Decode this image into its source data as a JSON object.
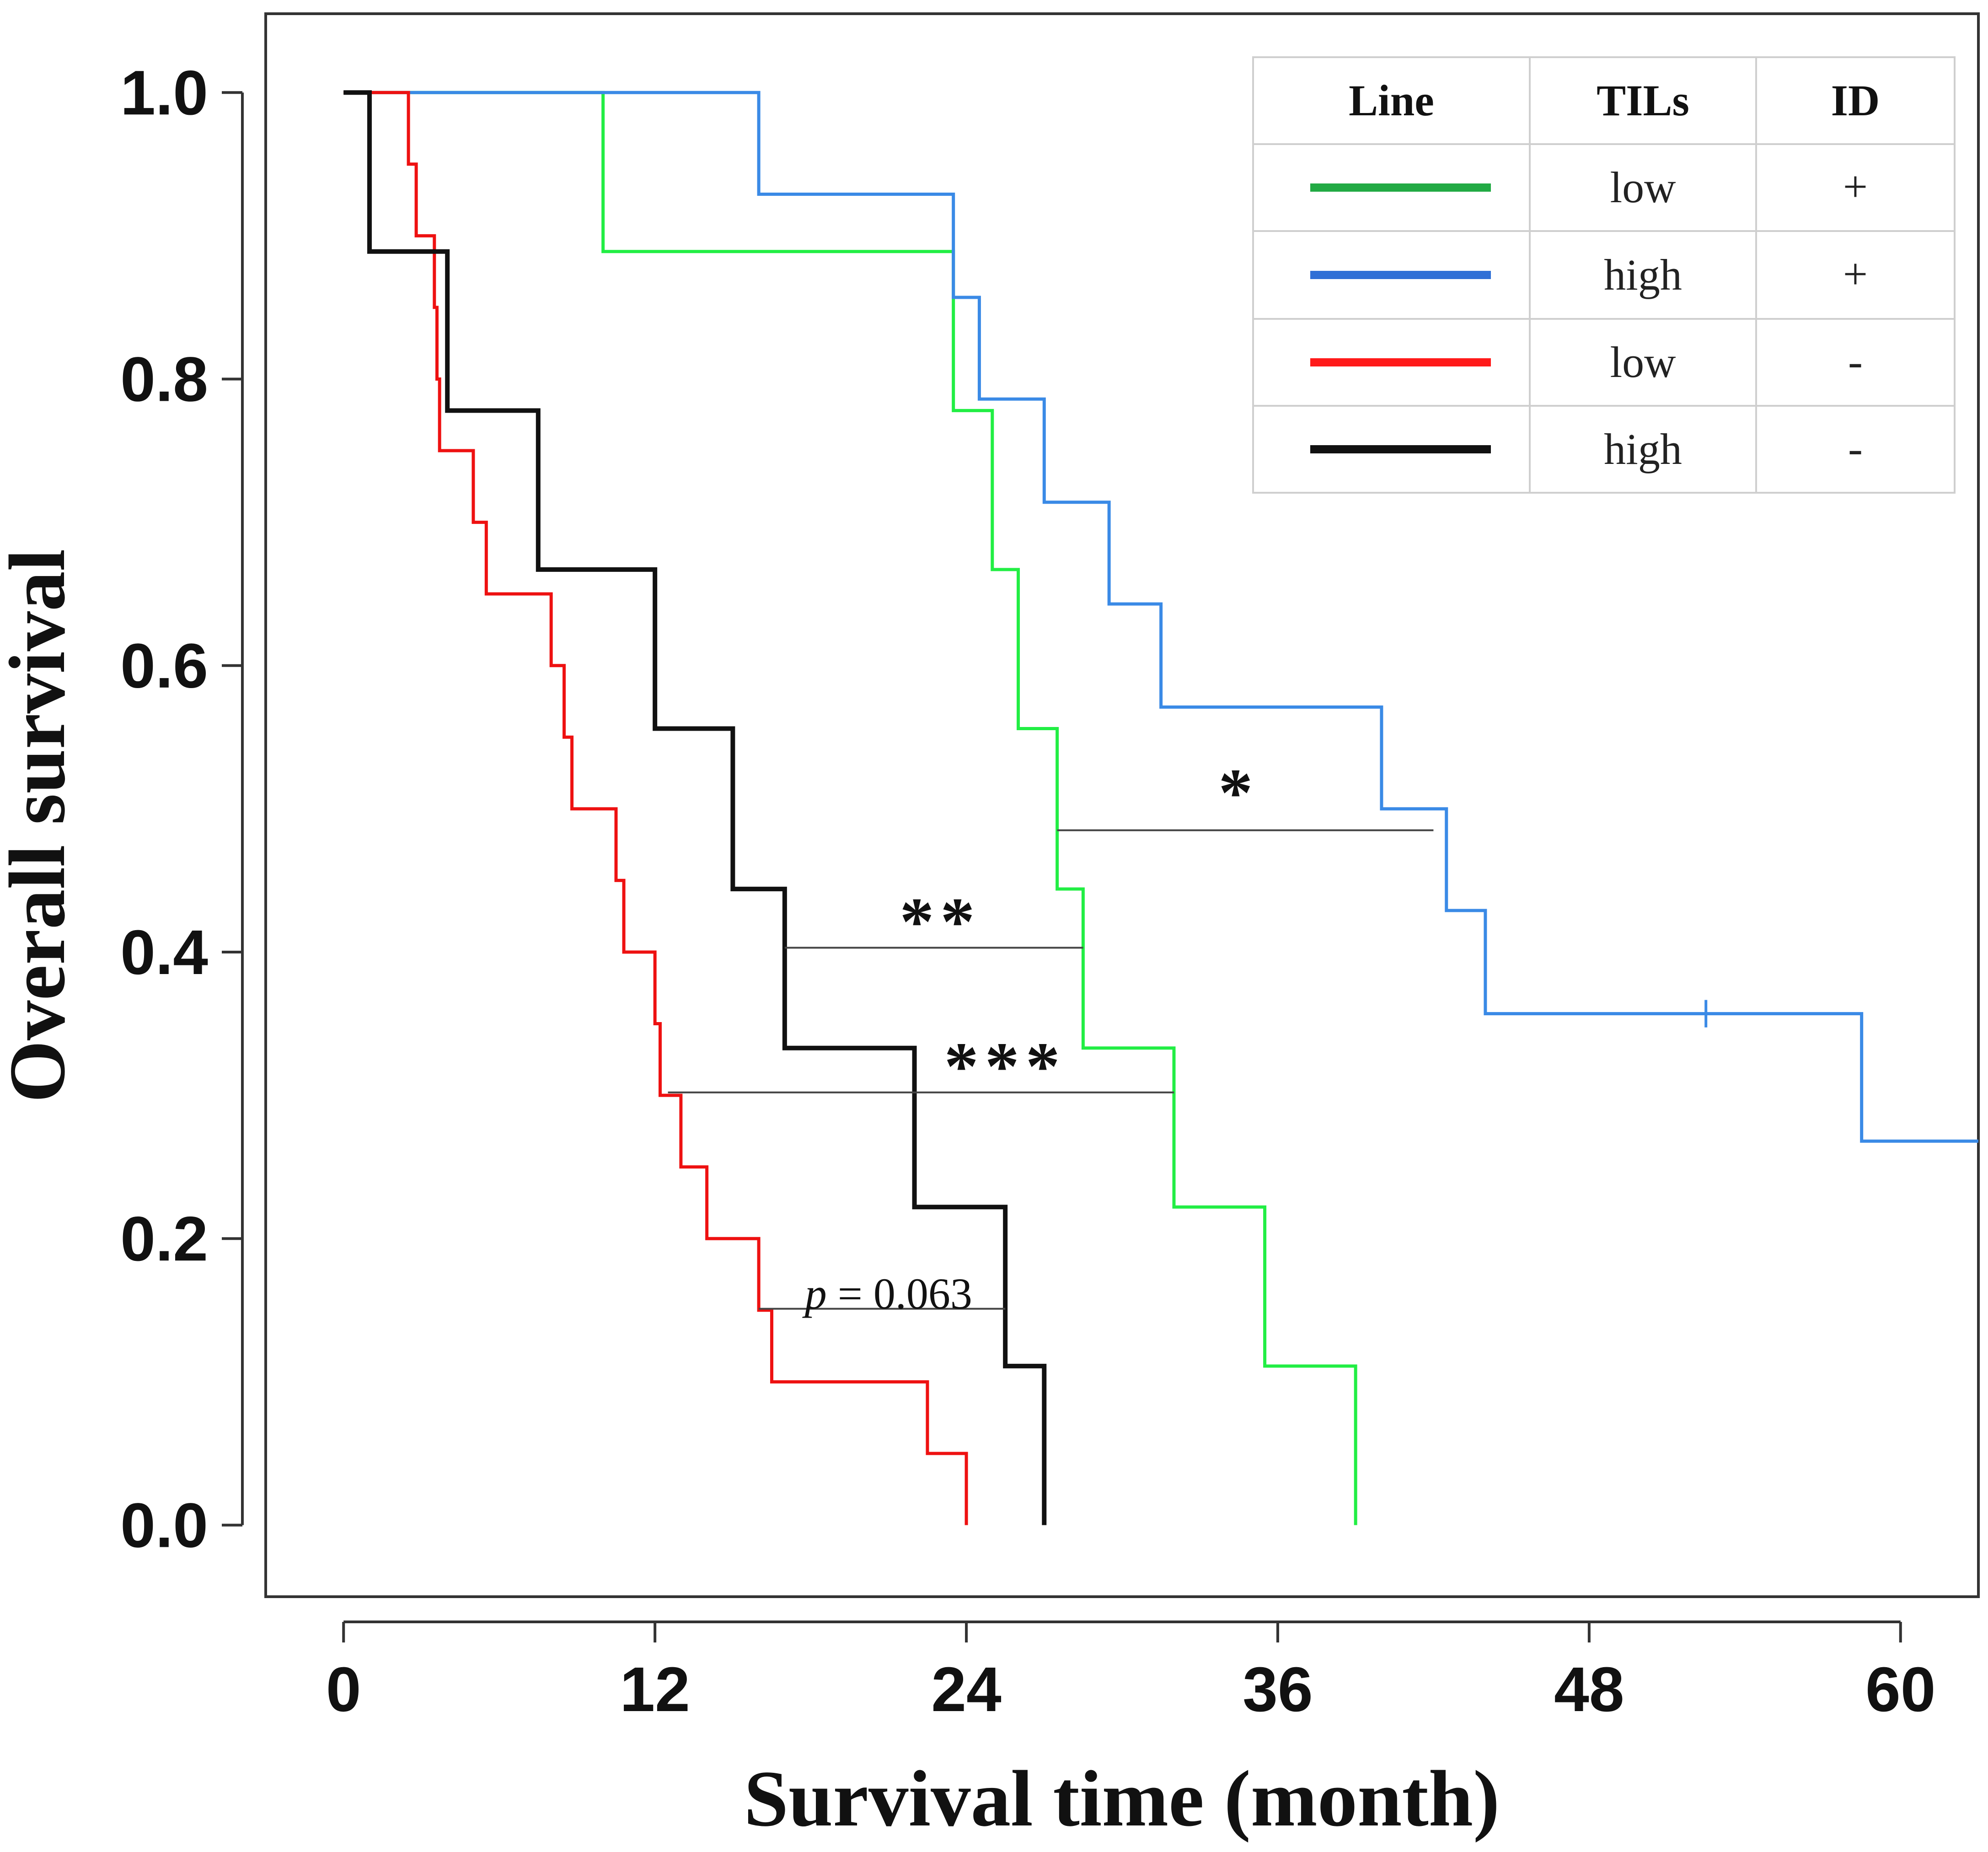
{
  "chart_data": {
    "type": "line",
    "subtype": "kaplan-meier-step",
    "title": "",
    "xlabel": "Survival time (month)",
    "ylabel": "Overall survival",
    "xlim": [
      -3,
      63
    ],
    "ylim": [
      -0.05,
      1.055
    ],
    "x_ticks": [
      0,
      12,
      24,
      36,
      48,
      60
    ],
    "x_tick_labels": [
      "0",
      "12",
      "24",
      "36",
      "48",
      "60"
    ],
    "y_ticks": [
      0.0,
      0.2,
      0.4,
      0.6,
      0.8,
      1.0
    ],
    "y_tick_labels": [
      "0.0",
      "0.2",
      "0.4",
      "0.6",
      "0.8",
      "1.0"
    ],
    "grid": false,
    "legend_position": "top-right",
    "series": [
      {
        "name": "TILs low, ID +",
        "line_label": "green",
        "color": "#22ee44",
        "steps": [
          [
            0,
            1.0
          ],
          [
            10,
            0.889
          ],
          [
            23.5,
            0.778
          ],
          [
            25,
            0.667
          ],
          [
            26,
            0.556
          ],
          [
            27.5,
            0.444
          ],
          [
            28.5,
            0.333
          ],
          [
            32,
            0.222
          ],
          [
            35.5,
            0.111
          ],
          [
            39,
            0.0
          ]
        ],
        "end_x": 39
      },
      {
        "name": "TILs high, ID +",
        "line_label": "blue",
        "color": "#3a8ae6",
        "steps": [
          [
            0,
            1.0
          ],
          [
            16,
            0.929
          ],
          [
            23.5,
            0.857
          ],
          [
            24.5,
            0.786
          ],
          [
            27,
            0.714
          ],
          [
            29.5,
            0.643
          ],
          [
            31.5,
            0.571
          ],
          [
            40,
            0.5
          ],
          [
            42.5,
            0.429
          ],
          [
            44,
            0.357
          ],
          [
            58.5,
            0.268
          ]
        ],
        "end_x": 63,
        "censored": [
          [
            52.5,
            0.357
          ]
        ]
      },
      {
        "name": "TILs low, ID -",
        "line_label": "red",
        "color": "#ee1111",
        "steps": [
          [
            0,
            1.0
          ],
          [
            2.5,
            0.95
          ],
          [
            2.8,
            0.9
          ],
          [
            3.5,
            0.85
          ],
          [
            3.6,
            0.8
          ],
          [
            3.7,
            0.75
          ],
          [
            5,
            0.7
          ],
          [
            5.5,
            0.65
          ],
          [
            8,
            0.6
          ],
          [
            8.5,
            0.55
          ],
          [
            8.8,
            0.5
          ],
          [
            10.5,
            0.45
          ],
          [
            10.8,
            0.4
          ],
          [
            12,
            0.35
          ],
          [
            12.2,
            0.3
          ],
          [
            13,
            0.25
          ],
          [
            14,
            0.2
          ],
          [
            16,
            0.15
          ],
          [
            16.5,
            0.1
          ],
          [
            22.5,
            0.05
          ],
          [
            24,
            0.0
          ]
        ],
        "end_x": 24
      },
      {
        "name": "TILs high, ID -",
        "line_label": "black",
        "color": "#111111",
        "steps": [
          [
            0,
            1.0
          ],
          [
            1,
            0.889
          ],
          [
            4,
            0.778
          ],
          [
            7.5,
            0.667
          ],
          [
            12,
            0.556
          ],
          [
            15,
            0.444
          ],
          [
            17,
            0.333
          ],
          [
            22,
            0.222
          ],
          [
            25.5,
            0.111
          ],
          [
            27,
            0.0
          ]
        ],
        "end_x": 27
      }
    ],
    "legend": {
      "headers": [
        "Line",
        "TILs",
        "ID"
      ],
      "rows": [
        {
          "color": "#22aa44",
          "tils": "low",
          "id": "+"
        },
        {
          "color": "#2f6fd6",
          "tils": "high",
          "id": "+"
        },
        {
          "color": "#ff1a1a",
          "tils": "low",
          "id": "-"
        },
        {
          "color": "#111111",
          "tils": "high",
          "id": "-"
        }
      ]
    },
    "annotations": [
      {
        "kind": "comparison",
        "label": "*",
        "x1": 27.5,
        "x2": 42,
        "y": 0.485,
        "label_x": 34.5,
        "label_y": 0.515
      },
      {
        "kind": "comparison",
        "label": "**",
        "x1": 17,
        "x2": 28.5,
        "y": 0.403,
        "label_x": 23,
        "label_y": 0.425
      },
      {
        "kind": "comparison",
        "label": "***",
        "x1": 12.5,
        "x2": 32,
        "y": 0.302,
        "label_x": 25.5,
        "label_y": 0.324
      },
      {
        "kind": "comparison",
        "label_italic": "p",
        "label": " = 0.063",
        "x1": 16,
        "x2": 25.5,
        "y": 0.151,
        "label_x": 21,
        "label_y": 0.162
      }
    ]
  }
}
